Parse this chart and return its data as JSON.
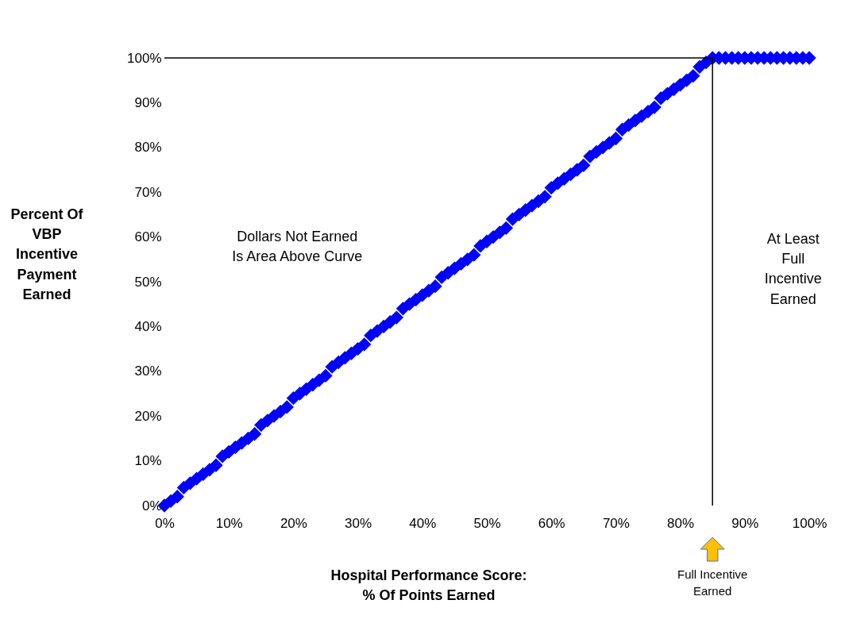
{
  "chart_data": {
    "type": "line",
    "xlabel": "Hospital Performance Score:\n% Of Points Earned",
    "ylabel": "Percent Of\nVBP\nIncentive\nPayment\nEarned",
    "xlim": [
      0,
      100
    ],
    "ylim": [
      0,
      100
    ],
    "xticks": [
      {
        "value": 0,
        "label": "0%"
      },
      {
        "value": 10,
        "label": "10%"
      },
      {
        "value": 20,
        "label": "20%"
      },
      {
        "value": 30,
        "label": "30%"
      },
      {
        "value": 40,
        "label": "40%"
      },
      {
        "value": 50,
        "label": "50%"
      },
      {
        "value": 60,
        "label": "60%"
      },
      {
        "value": 70,
        "label": "70%"
      },
      {
        "value": 80,
        "label": "80%"
      },
      {
        "value": 90,
        "label": "90%"
      },
      {
        "value": 100,
        "label": "100%"
      }
    ],
    "yticks": [
      {
        "value": 0,
        "label": "0%"
      },
      {
        "value": 10,
        "label": "10%"
      },
      {
        "value": 20,
        "label": "20%"
      },
      {
        "value": 30,
        "label": "30%"
      },
      {
        "value": 40,
        "label": "40%"
      },
      {
        "value": 50,
        "label": "50%"
      },
      {
        "value": 60,
        "label": "60%"
      },
      {
        "value": 70,
        "label": "70%"
      },
      {
        "value": 80,
        "label": "80%"
      },
      {
        "value": 90,
        "label": "90%"
      },
      {
        "value": 100,
        "label": "100%"
      }
    ],
    "grid": false,
    "series": [
      {
        "type": "scatter",
        "marker": "diamond",
        "color": "#0000ff",
        "x": [
          0,
          1,
          2,
          3,
          4,
          5,
          6,
          7,
          8,
          9,
          10,
          11,
          12,
          13,
          14,
          15,
          16,
          17,
          18,
          19,
          20,
          21,
          22,
          23,
          24,
          25,
          26,
          27,
          28,
          29,
          30,
          31,
          32,
          33,
          34,
          35,
          36,
          37,
          38,
          39,
          40,
          41,
          42,
          43,
          44,
          45,
          46,
          47,
          48,
          49,
          50,
          51,
          52,
          53,
          54,
          55,
          56,
          57,
          58,
          59,
          60,
          61,
          62,
          63,
          64,
          65,
          66,
          67,
          68,
          69,
          70,
          71,
          72,
          73,
          74,
          75,
          76,
          77,
          78,
          79,
          80,
          81,
          82,
          83,
          84,
          85,
          86,
          87,
          88,
          89,
          90,
          91,
          92,
          93,
          94,
          95,
          96,
          97,
          98,
          99,
          100
        ],
        "values": [
          0,
          1,
          2,
          4,
          5,
          6,
          7,
          8,
          9,
          11,
          12,
          13,
          14,
          15,
          16,
          18,
          19,
          20,
          21,
          22,
          24,
          25,
          26,
          27,
          28,
          29,
          31,
          32,
          33,
          34,
          35,
          36,
          38,
          39,
          40,
          41,
          42,
          44,
          45,
          46,
          47,
          48,
          49,
          51,
          52,
          53,
          54,
          55,
          56,
          58,
          59,
          60,
          61,
          62,
          64,
          65,
          66,
          67,
          68,
          69,
          71,
          72,
          73,
          74,
          75,
          76,
          78,
          79,
          80,
          81,
          82,
          84,
          85,
          86,
          87,
          88,
          89,
          91,
          92,
          93,
          94,
          95,
          96,
          98,
          99,
          100,
          100,
          100,
          100,
          100,
          100,
          100,
          100,
          100,
          100,
          100,
          100,
          100,
          100,
          100,
          100
        ]
      },
      {
        "color": "#000000",
        "x": [
          0,
          85
        ],
        "values": [
          100,
          100
        ]
      }
    ],
    "ref_lines": [
      {
        "axis": "x",
        "value": 85,
        "color": "#000000"
      }
    ],
    "annotations": [
      "Dollars Not Earned\nIs Area Above Curve",
      "At Least\nFull\nIncentive\nEarned",
      "Full Incentive\nEarned"
    ]
  }
}
